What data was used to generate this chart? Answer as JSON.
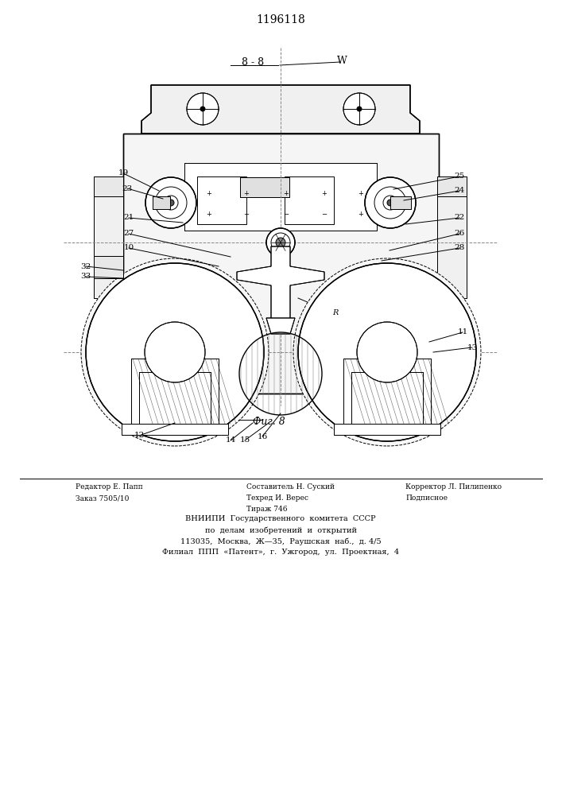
{
  "title": "1196118",
  "fig_label": "Фиг. 8",
  "view_label": "8 - 8",
  "w_label": "W",
  "background_color": "#ffffff",
  "line_color": "#000000",
  "footer_col1": [
    "Редактор Е. Папп",
    "Заказ 7505/10"
  ],
  "footer_col2": [
    "Составитель Н. Суский",
    "Техред И. Верес",
    "Тираж 746"
  ],
  "footer_col3": [
    "Корректор Л. Пилипенко",
    "Подписное"
  ],
  "footer_center": [
    "ВНИИПИ  Государственного  комитета  СССР",
    "по  делам  изобретений  и  открытий",
    "113035,  Москва,  Ж—35,  Раушская  наб.,  д. 4/5",
    "Филиал  ППП  «Патент»,  г.  Ужгород,  ул.  Проектная,  4"
  ]
}
